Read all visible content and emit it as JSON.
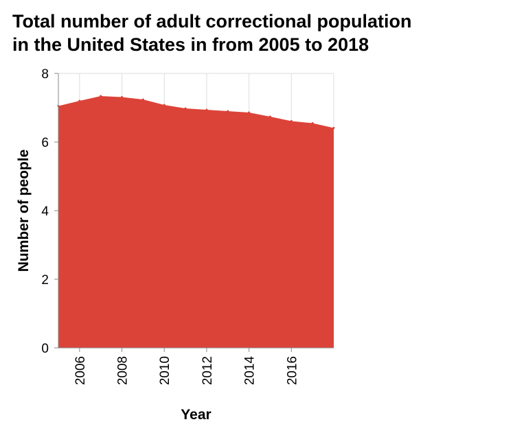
{
  "chart_data": {
    "type": "area",
    "title_lines": [
      "Total number of adult correctional population",
      "in the United States in from 2005 to 2018"
    ],
    "xlabel": "Year",
    "ylabel": "Number of people",
    "x": [
      2005,
      2006,
      2007,
      2008,
      2009,
      2010,
      2011,
      2012,
      2013,
      2014,
      2015,
      2016,
      2017,
      2018
    ],
    "values": [
      7.05,
      7.2,
      7.34,
      7.31,
      7.24,
      7.08,
      6.98,
      6.94,
      6.9,
      6.86,
      6.74,
      6.61,
      6.55,
      6.41
    ],
    "xlim": [
      2005,
      2018
    ],
    "ylim": [
      0,
      8
    ],
    "x_ticks": [
      2006,
      2008,
      2010,
      2012,
      2014,
      2016
    ],
    "y_ticks": [
      0,
      2,
      4,
      6,
      8
    ],
    "fill_color": "#dc4338",
    "grid": true
  }
}
